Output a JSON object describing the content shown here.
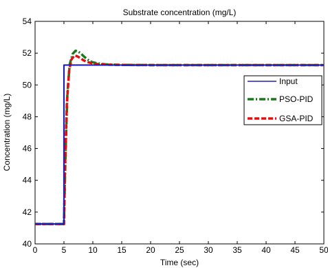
{
  "chart_data": {
    "type": "line",
    "title": "Substrate concentration (mg/L)",
    "xlabel": "Time (sec)",
    "ylabel": "Concentration (mg/L)",
    "xlim": [
      0,
      50
    ],
    "ylim": [
      40,
      54
    ],
    "xticks": [
      0,
      5,
      10,
      15,
      20,
      25,
      30,
      35,
      40,
      45,
      50
    ],
    "yticks": [
      40,
      42,
      44,
      46,
      48,
      50,
      52,
      54
    ],
    "grid": false,
    "legend_position": "right",
    "series": [
      {
        "name": "Input",
        "color": "#1f1fb4",
        "style": "solid",
        "x": [
          0,
          5,
          5,
          50
        ],
        "y": [
          41.25,
          41.25,
          51.25,
          51.25
        ]
      },
      {
        "name": "PSO-PID",
        "color": "#1a7a1a",
        "style": "dashdot",
        "x": [
          0,
          5,
          5.3,
          5.6,
          6.0,
          6.5,
          7.0,
          7.5,
          8.0,
          8.5,
          9.0,
          9.5,
          10.0,
          11.0,
          12.0,
          13.0,
          15.0,
          20.0,
          50.0
        ],
        "y": [
          41.25,
          41.25,
          46.0,
          49.5,
          51.3,
          51.95,
          52.15,
          52.1,
          51.95,
          51.78,
          51.62,
          51.5,
          51.42,
          51.35,
          51.3,
          51.28,
          51.26,
          51.25,
          51.25
        ]
      },
      {
        "name": "GSA-PID",
        "color": "#e01010",
        "style": "dashed",
        "x": [
          0,
          5,
          5.2,
          5.5,
          5.9,
          6.3,
          6.8,
          7.2,
          7.8,
          8.4,
          9.0,
          10.0,
          11.0,
          13.0,
          15.0,
          20.0,
          50.0
        ],
        "y": [
          41.25,
          41.25,
          45.0,
          48.8,
          50.9,
          51.6,
          51.85,
          51.82,
          51.7,
          51.55,
          51.45,
          51.35,
          51.3,
          51.27,
          51.26,
          51.25,
          51.25
        ]
      }
    ]
  }
}
